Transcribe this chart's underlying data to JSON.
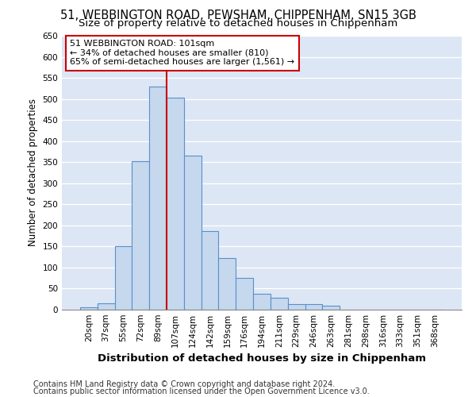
{
  "title1": "51, WEBBINGTON ROAD, PEWSHAM, CHIPPENHAM, SN15 3GB",
  "title2": "Size of property relative to detached houses in Chippenham",
  "xlabel": "Distribution of detached houses by size in Chippenham",
  "ylabel": "Number of detached properties",
  "categories": [
    "20sqm",
    "37sqm",
    "55sqm",
    "72sqm",
    "89sqm",
    "107sqm",
    "124sqm",
    "142sqm",
    "159sqm",
    "176sqm",
    "194sqm",
    "211sqm",
    "229sqm",
    "246sqm",
    "263sqm",
    "281sqm",
    "298sqm",
    "316sqm",
    "333sqm",
    "351sqm",
    "368sqm"
  ],
  "values": [
    5,
    15,
    150,
    353,
    530,
    503,
    365,
    187,
    122,
    75,
    38,
    28,
    13,
    13,
    10,
    0,
    0,
    0,
    0,
    0,
    0
  ],
  "bar_color": "#c5d8ee",
  "bar_edge_color": "#5b8fc9",
  "red_line_x": 4.5,
  "annotation_text": "51 WEBBINGTON ROAD: 101sqm\n← 34% of detached houses are smaller (810)\n65% of semi-detached houses are larger (1,561) →",
  "annotation_box_color": "white",
  "annotation_box_edge_color": "#cc0000",
  "ylim": [
    0,
    650
  ],
  "yticks": [
    0,
    50,
    100,
    150,
    200,
    250,
    300,
    350,
    400,
    450,
    500,
    550,
    600,
    650
  ],
  "background_color": "#dce6f5",
  "grid_color": "white",
  "footer1": "Contains HM Land Registry data © Crown copyright and database right 2024.",
  "footer2": "Contains public sector information licensed under the Open Government Licence v3.0.",
  "title1_fontsize": 10.5,
  "title2_fontsize": 9.5,
  "xlabel_fontsize": 9.5,
  "ylabel_fontsize": 8.5,
  "tick_fontsize": 7.5,
  "footer_fontsize": 7,
  "ann_fontsize": 8
}
